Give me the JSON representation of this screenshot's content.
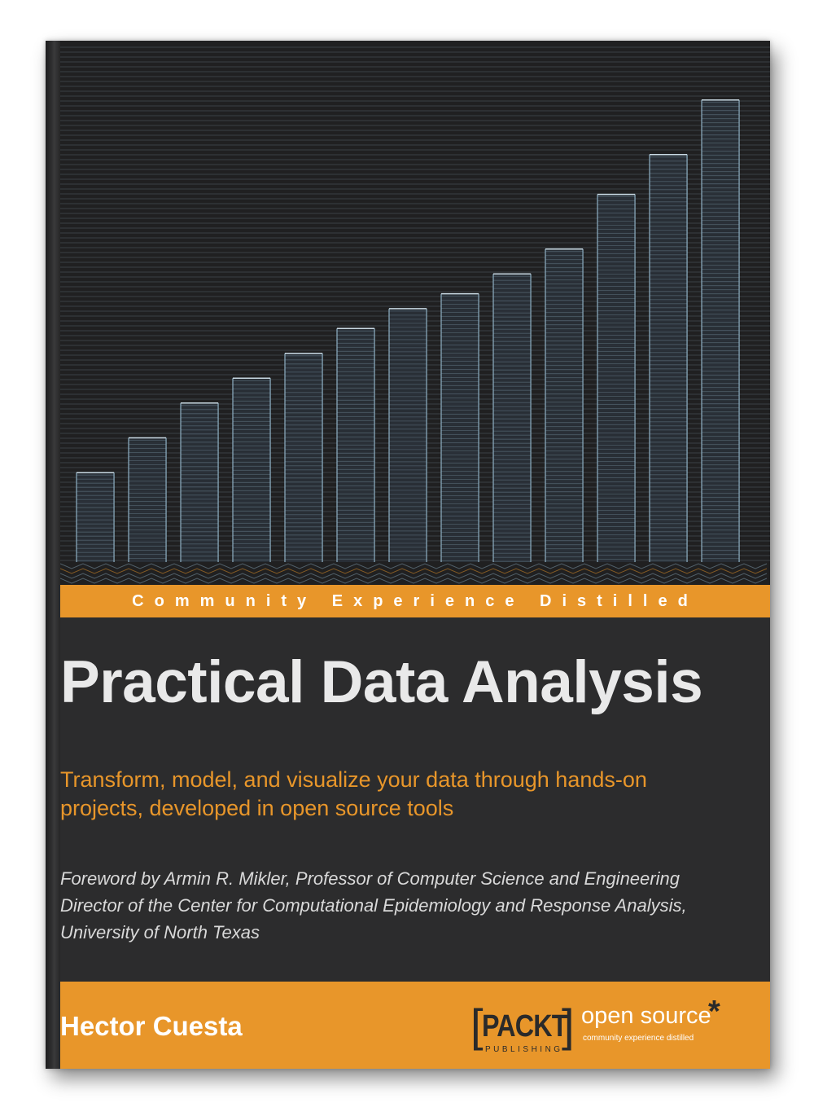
{
  "cover": {
    "tagline": "Community Experience Distilled",
    "title": "Practical Data Analysis",
    "subtitle_lines": [
      "Transform, model, and visualize your data through hands-on",
      "projects, developed in open source tools"
    ],
    "foreword_lines": [
      "Foreword by Armin R. Mikler, Professor of Computer Science and Engineering",
      "Director of the Center for Computational Epidemiology and Response Analysis,",
      "University of North Texas"
    ],
    "author": "Hector Cuesta",
    "publisher": {
      "name": "PACKT",
      "division": "PUBLISHING",
      "imprint": "open source",
      "imprint_tagline": "community experience distilled"
    }
  },
  "art": {
    "bar_levels": [
      0.18,
      0.25,
      0.32,
      0.37,
      0.42,
      0.47,
      0.51,
      0.54,
      0.58,
      0.63,
      0.74,
      0.82,
      0.93
    ],
    "colors": {
      "background": "#202021",
      "stripe": "#5b6a72",
      "bar_edge": "#8fb0c4",
      "accent": "#e8962a"
    }
  },
  "colors": {
    "cover": "#2c2c2d",
    "orange": "#e8962a",
    "title": "#e9e9e9"
  }
}
